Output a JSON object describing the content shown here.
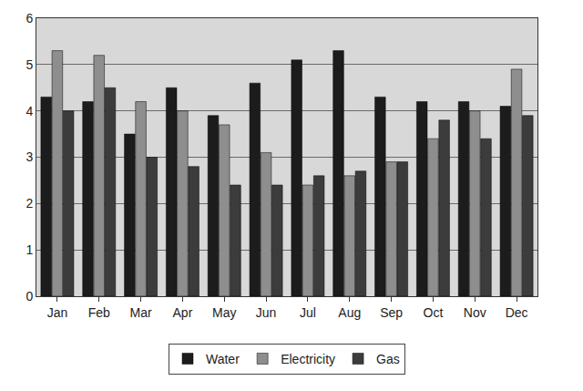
{
  "chart_data": {
    "type": "bar",
    "categories": [
      "Jan",
      "Feb",
      "Mar",
      "Apr",
      "May",
      "Jun",
      "Jul",
      "Aug",
      "Sep",
      "Oct",
      "Nov",
      "Dec"
    ],
    "series": [
      {
        "name": "Water",
        "color": "#1c1c1c",
        "values": [
          4.3,
          4.2,
          3.5,
          4.5,
          3.9,
          4.6,
          5.1,
          5.3,
          4.3,
          4.2,
          4.2,
          4.1
        ]
      },
      {
        "name": "Electricity",
        "color": "#8e8e8e",
        "values": [
          5.3,
          5.2,
          4.2,
          4.0,
          3.7,
          3.1,
          2.4,
          2.6,
          2.9,
          3.4,
          4.0,
          4.9
        ]
      },
      {
        "name": "Gas",
        "color": "#3c3c3c",
        "values": [
          4.0,
          4.5,
          3.0,
          2.8,
          2.4,
          2.4,
          2.6,
          2.7,
          2.9,
          3.8,
          3.4,
          3.9
        ]
      }
    ],
    "ylim": [
      0,
      6
    ],
    "yticks": [
      0,
      1,
      2,
      3,
      4,
      5,
      6
    ],
    "grid": true,
    "legend": "bottom"
  }
}
